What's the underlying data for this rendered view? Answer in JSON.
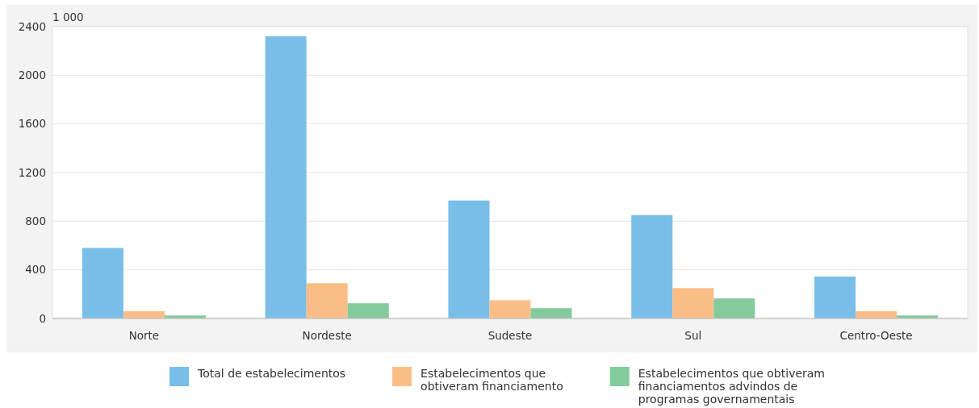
{
  "chart_data": {
    "type": "bar",
    "ylabel": "1 000",
    "categories": [
      "Norte",
      "Nordeste",
      "Sudeste",
      "Sul",
      "Centro-Oeste"
    ],
    "series": [
      {
        "name": "Total de estabelecimentos",
        "color": "#78bee9",
        "values": [
          580,
          2320,
          970,
          850,
          345
        ]
      },
      {
        "name": "Estabelecimentos que obtiveram financiamento",
        "color": "#fbbd86",
        "values": [
          60,
          290,
          150,
          250,
          60
        ]
      },
      {
        "name": "Estabelecimentos que obtiveram financiamentos advindos de programas governamentais",
        "color": "#83cb9a",
        "values": [
          25,
          125,
          85,
          165,
          25
        ]
      }
    ],
    "ylim": [
      0,
      2400
    ],
    "yticks": [
      0,
      400,
      800,
      1200,
      1600,
      2000,
      2400
    ],
    "grid": "y",
    "legend": "bottom"
  }
}
